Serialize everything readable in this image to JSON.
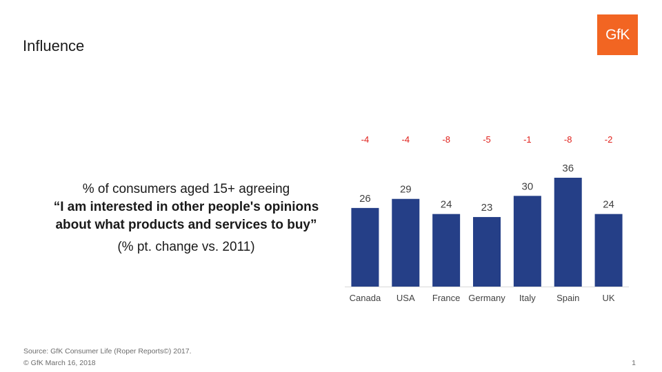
{
  "title": "Influence",
  "logo": "GfK",
  "statement": {
    "subtitle": "% of consumers aged 15+ agreeing",
    "quote_line1": "“I am interested in other people's opinions",
    "quote_line2": "about what products and services to buy”",
    "note": "(% pt. change vs. 2011)"
  },
  "chart_data": {
    "type": "bar",
    "categories": [
      "Canada",
      "USA",
      "France",
      "Germany",
      "Italy",
      "Spain",
      "UK"
    ],
    "values": [
      26,
      29,
      24,
      23,
      30,
      36,
      24
    ],
    "change_labels": [
      "-4",
      "-4",
      "-8",
      "-5",
      "-1",
      "-8",
      "-2"
    ],
    "ylim": [
      0,
      36
    ],
    "bar_color": "#253f87",
    "change_color": "#e0201b",
    "grid": false
  },
  "footer": {
    "source": "Source: GfK Consumer Life (Roper Reports©) 2017.",
    "copyright": "© GfK March 16, 2018",
    "page": "1"
  }
}
